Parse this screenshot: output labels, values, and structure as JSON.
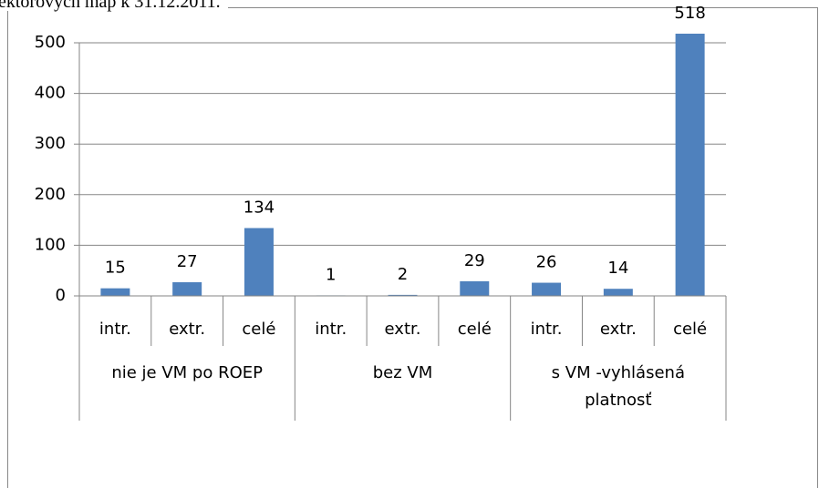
{
  "chart_data": {
    "type": "bar",
    "title": "ektorových máp k 31.12.2011.",
    "groups": [
      {
        "name": "nie je VM po ROEP",
        "categories": [
          "intr.",
          "extr.",
          "celé"
        ],
        "values": [
          15,
          27,
          134
        ]
      },
      {
        "name": "bez VM",
        "categories": [
          "intr.",
          "extr.",
          "celé"
        ],
        "values": [
          1,
          2,
          29
        ]
      },
      {
        "name": "s VM -vyhlásená platnosť",
        "categories": [
          "intr.",
          "extr.",
          "celé"
        ],
        "values": [
          26,
          14,
          518
        ]
      }
    ],
    "color": "#4f81bd",
    "ylim": [
      0,
      500
    ],
    "yticks": [
      0,
      100,
      200,
      300,
      400,
      500
    ],
    "grid": true
  }
}
